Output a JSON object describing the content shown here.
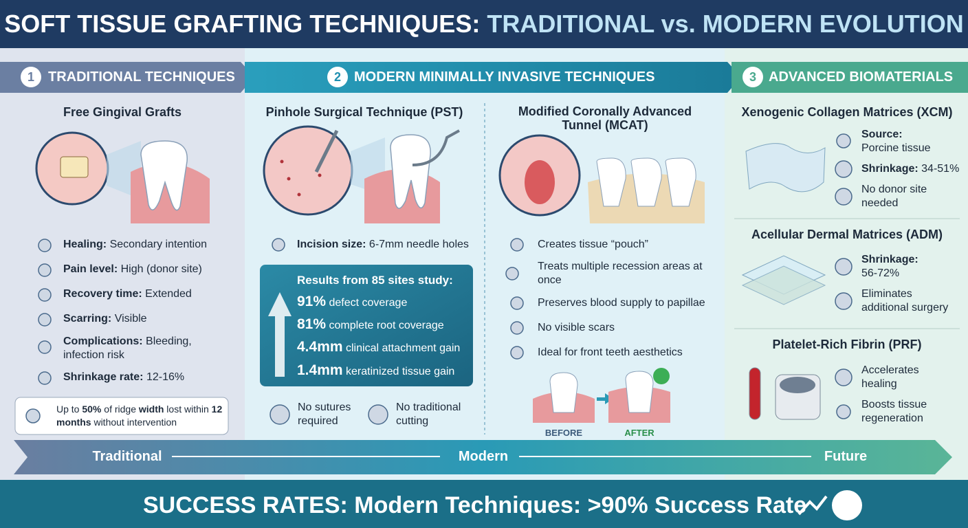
{
  "header": {
    "title_part1": "SOFT TISSUE GRAFTING TECHNIQUES:",
    "title_part2": "TRADITIONAL vs. MODERN EVOLUTION"
  },
  "sections": [
    {
      "number": "1",
      "title": "TRADITIONAL TECHNIQUES",
      "technique": "Free Gingival Grafts",
      "facts": [
        {
          "label": "Healing:",
          "text": "Secondary intention"
        },
        {
          "label": "Pain level:",
          "text": "High (donor site)"
        },
        {
          "label": "Recovery time:",
          "text": "Extended"
        },
        {
          "label": "Scarring:",
          "text": "Visible"
        },
        {
          "label": "Complications:",
          "text": "Bleeding, infection risk"
        },
        {
          "label": "Shrinkage rate:",
          "text": "12-16%"
        }
      ],
      "callout": [
        "Up to ",
        "50%",
        " of ridge ",
        "width",
        " lost within ",
        "12 months",
        " without intervention"
      ]
    },
    {
      "number": "2",
      "title": "MODERN MINIMALLY INVASIVE TECHNIQUES",
      "pst": {
        "title": "Pinhole Surgical Technique (PST)",
        "incision": {
          "label": "Incision size:",
          "text": "6-7mm needle holes"
        },
        "results_title": "Results from 85 sites study:",
        "results": [
          {
            "value": "91%",
            "text": "defect coverage"
          },
          {
            "value": "81%",
            "text": "complete root coverage"
          },
          {
            "value": "4.4mm",
            "text": "clinical attachment gain"
          },
          {
            "value": "1.4mm",
            "text": "keratinized tissue gain"
          }
        ],
        "badges": [
          "No sutures required",
          "No traditional cutting"
        ]
      },
      "mcat": {
        "title": "Modified Coronally Advanced Tunnel (MCAT)",
        "features": [
          "Creates tissue “pouch”",
          "Treats multiple recession areas at once",
          "Preserves blood supply to papillae",
          "No visible scars",
          "Ideal for front teeth aesthetics"
        ],
        "before": "BEFORE",
        "after": "AFTER"
      }
    },
    {
      "number": "3",
      "title": "ADVANCED BIOMATERIALS",
      "materials": [
        {
          "title": "Xenogenic Collagen Matrices (XCM)",
          "facts": [
            {
              "label": "Source:",
              "text": "Porcine tissue"
            },
            {
              "label": "Shrinkage:",
              "text": "34-51%"
            },
            {
              "text": "No donor site needed"
            }
          ]
        },
        {
          "title": "Acellular Dermal Matrices (ADM)",
          "facts": [
            {
              "label": "Shrinkage:",
              "text": "56-72%"
            },
            {
              "text": "Eliminates additional surgery"
            }
          ]
        },
        {
          "title": "Platelet-Rich Fibrin (PRF)",
          "facts": [
            {
              "text": "Accelerates healing"
            },
            {
              "text": "Boosts tissue regeneration"
            }
          ]
        }
      ]
    }
  ],
  "timeline": [
    "Traditional",
    "Modern",
    "Future"
  ],
  "footer": "SUCCESS RATES: Modern Techniques: >90% Success Rate"
}
